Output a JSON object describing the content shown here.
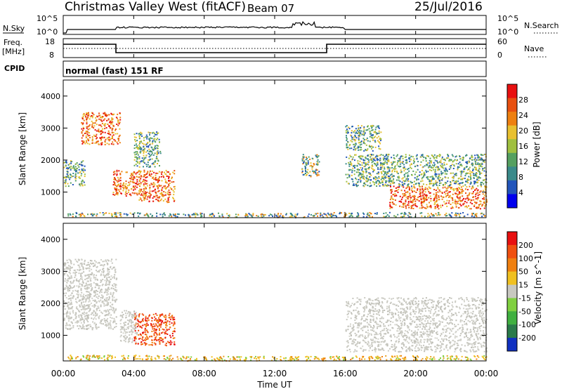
{
  "header": {
    "station": "Christmas Valley West (fitACF)",
    "beam": "Beam 07",
    "date": "25/Jul/2016"
  },
  "strips": {
    "nsky_label": "N.Sky",
    "nsky_ticks": [
      "10^5",
      "10^0"
    ],
    "nsearch_label": "N.Search",
    "nsearch_ticks": [
      "10^5",
      "10^0"
    ],
    "freq_label_1": "Freq.",
    "freq_label_2": "[MHz]",
    "freq_ticks": [
      "18",
      "8"
    ],
    "nave_label": "Nave",
    "nave_ticks": [
      "60",
      "0"
    ],
    "cpid_label": "CPID",
    "cpid_value": "normal (fast) 151 RF"
  },
  "chart_data": [
    {
      "type": "heatmap",
      "name": "power-panel",
      "ylabel": "Slant Range [km]",
      "yticks": [
        "1000",
        "2000",
        "3000",
        "4000"
      ],
      "ylim": [
        200,
        4500
      ],
      "xticks": [
        "00:00",
        "04:00",
        "08:00",
        "12:00",
        "16:00",
        "20:00",
        "00:00"
      ],
      "xlim_hours": [
        0,
        24
      ],
      "colorbar": {
        "label": "Power [dB]",
        "ticks": [
          "28",
          "24",
          "20",
          "16",
          "12",
          "8",
          "4"
        ],
        "colors": [
          "#0000ee",
          "#2255bb",
          "#3a8a8a",
          "#55a060",
          "#a0c040",
          "#e8c030",
          "#ee8010",
          "#e85010",
          "#e81010"
        ]
      },
      "scatter_regions": [
        {
          "t0": 0.2,
          "t1": 6.3,
          "r0": 250,
          "r1": 380,
          "level": "low"
        },
        {
          "t0": 6.3,
          "t1": 15.0,
          "r0": 220,
          "r1": 360,
          "level": "low"
        },
        {
          "t0": 15.0,
          "t1": 24.0,
          "r0": 240,
          "r1": 380,
          "level": "low"
        },
        {
          "t0": 1.0,
          "t1": 3.2,
          "r0": 2500,
          "r1": 3500,
          "level": "high"
        },
        {
          "t0": 2.8,
          "t1": 4.2,
          "r0": 900,
          "r1": 1700,
          "level": "high"
        },
        {
          "t0": 4.2,
          "t1": 6.3,
          "r0": 700,
          "r1": 1700,
          "level": "high"
        },
        {
          "t0": 0.0,
          "t1": 1.2,
          "r0": 1200,
          "r1": 2000,
          "level": "mid"
        },
        {
          "t0": 4.0,
          "t1": 5.5,
          "r0": 1800,
          "r1": 2900,
          "level": "mid"
        },
        {
          "t0": 13.5,
          "t1": 14.5,
          "r0": 1500,
          "r1": 2200,
          "level": "low"
        },
        {
          "t0": 16.0,
          "t1": 24.0,
          "r0": 1200,
          "r1": 2200,
          "level": "mid"
        },
        {
          "t0": 18.5,
          "t1": 24.0,
          "r0": 500,
          "r1": 1200,
          "level": "high"
        },
        {
          "t0": 16.0,
          "t1": 18.0,
          "r0": 2300,
          "r1": 3100,
          "level": "mid"
        }
      ]
    },
    {
      "type": "heatmap",
      "name": "velocity-panel",
      "ylabel": "Slant Range [km]",
      "yticks": [
        "1000",
        "2000",
        "3000",
        "4000"
      ],
      "ylim": [
        200,
        4500
      ],
      "xticks": [
        "00:00",
        "04:00",
        "08:00",
        "12:00",
        "16:00",
        "20:00",
        "00:00"
      ],
      "xlim_hours": [
        0,
        24
      ],
      "xlabel": "Time UT",
      "colorbar": {
        "label": "Velocity [m s^-1]",
        "ticks": [
          "200",
          "100",
          "50",
          "15",
          "-15",
          "-50",
          "-100",
          "-200"
        ],
        "colors": [
          "#1030c0",
          "#2a7a4a",
          "#40b040",
          "#80d040",
          "#c8c8c0",
          "#f0c020",
          "#f08010",
          "#f05010",
          "#e81010"
        ]
      },
      "scatter_regions": [
        {
          "t0": 0.2,
          "t1": 6.3,
          "r0": 250,
          "r1": 400,
          "level": "orange"
        },
        {
          "t0": 6.3,
          "t1": 15.0,
          "r0": 220,
          "r1": 360,
          "level": "orange"
        },
        {
          "t0": 15.0,
          "t1": 24.0,
          "r0": 240,
          "r1": 380,
          "level": "orange"
        },
        {
          "t0": 0.0,
          "t1": 3.0,
          "r0": 1200,
          "r1": 3400,
          "level": "gray"
        },
        {
          "t0": 16.0,
          "t1": 24.0,
          "r0": 500,
          "r1": 2200,
          "level": "gray"
        },
        {
          "t0": 4.0,
          "t1": 6.3,
          "r0": 700,
          "r1": 1700,
          "level": "red"
        },
        {
          "t0": 3.2,
          "t1": 4.2,
          "r0": 800,
          "r1": 1800,
          "level": "gray"
        }
      ]
    }
  ]
}
